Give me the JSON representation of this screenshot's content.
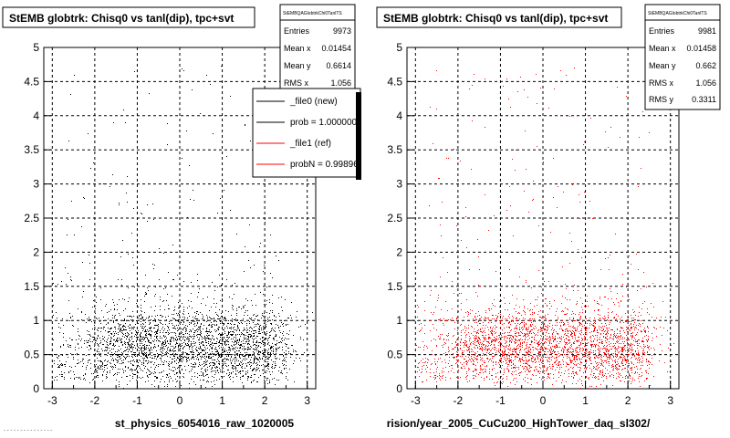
{
  "colors": {
    "marker_left": "#000000",
    "marker_right": "#ff0000",
    "legend_ref": "#ff0000",
    "legend_new": "#000000"
  },
  "chart_data": [
    {
      "type": "scatter",
      "title": "StEMB globtrk: Chisq0 vs tanl(dip), tpc+svt",
      "xlabel": "st_physics_6054016_raw_1020005",
      "ylabel": "",
      "xlim": [
        -3.2,
        3.2
      ],
      "ylim": [
        0,
        5
      ],
      "xticks": [
        "-3",
        "-2",
        "-1",
        "0",
        "1",
        "2",
        "3"
      ],
      "yticks": [
        "0",
        "0.5",
        "1",
        "1.5",
        "2",
        "2.5",
        "3",
        "3.5",
        "4",
        "4.5",
        "5"
      ],
      "grid": true,
      "series": [
        {
          "color": "#000000",
          "density": {
            "x_range": [
              -3,
              2.5
            ],
            "core_x": [
              -1,
              1.5
            ],
            "core_y": [
              0.3,
              1.0
            ]
          }
        }
      ],
      "stats": {
        "header": "StEMBQAGlobtrkChi0TanlTS",
        "rows": [
          {
            "label": "Entries",
            "value": "9973"
          },
          {
            "label": "Mean x",
            "value": "0.01454"
          },
          {
            "label": "Mean y",
            "value": "0.6614"
          },
          {
            "label": "RMS x",
            "value": "1.056"
          }
        ]
      },
      "legend": {
        "entries": [
          {
            "label": "_file0 (new)",
            "color": "#000000"
          },
          {
            "label": "prob = 1.000000",
            "color": "#000000"
          },
          {
            "label": "_file1 (ref)",
            "color": "#ff0000"
          },
          {
            "label": "probN = 0.998960",
            "color": "#ff0000"
          }
        ]
      }
    },
    {
      "type": "scatter",
      "title": "StEMB globtrk: Chisq0 vs tanl(dip), tpc+svt",
      "xlabel": "rision/year_2005_CuCu200_HighTower_daq_sl302/",
      "ylabel": "",
      "xlim": [
        -3.2,
        3.2
      ],
      "ylim": [
        0,
        5
      ],
      "xticks": [
        "-3",
        "-2",
        "-1",
        "0",
        "1",
        "2",
        "3"
      ],
      "yticks": [
        "0",
        "0.5",
        "1",
        "1.5",
        "2",
        "2.5",
        "3",
        "3.5",
        "4",
        "4.5",
        "5"
      ],
      "grid": true,
      "series": [
        {
          "color": "#ff0000",
          "density": {
            "x_range": [
              -3,
              2.5
            ],
            "core_x": [
              -1,
              1.5
            ],
            "core_y": [
              0.3,
              1.0
            ]
          }
        }
      ],
      "stats": {
        "header": "StEMBQAGlobtrkChi0TanlTS",
        "rows": [
          {
            "label": "Entries",
            "value": "9981"
          },
          {
            "label": "Mean x",
            "value": "0.01458"
          },
          {
            "label": "Mean y",
            "value": "0.662"
          },
          {
            "label": "RMS x",
            "value": "1.056"
          },
          {
            "label": "RMS y",
            "value": "0.3311"
          }
        ]
      }
    }
  ],
  "footer_text": "- - -  - -  -  - - -  - -  - - - -"
}
